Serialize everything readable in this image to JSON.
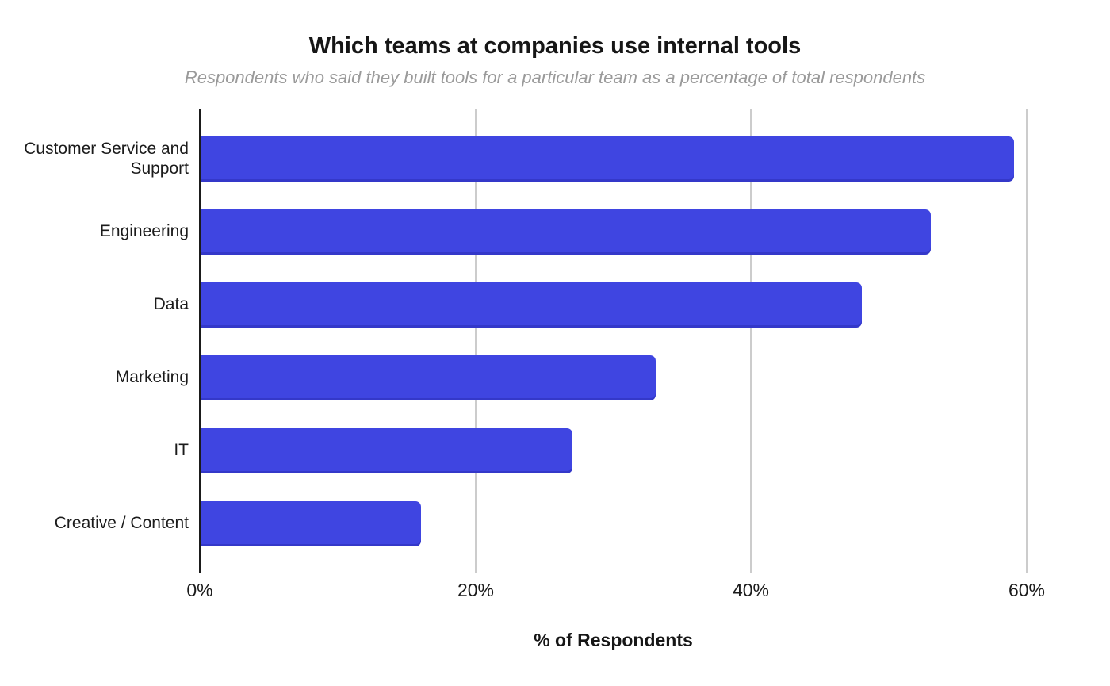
{
  "chart_data": {
    "type": "bar",
    "orientation": "horizontal",
    "title": "Which teams at companies use internal tools",
    "subtitle": "Respondents who said they built tools for a particular team as a percentage of total respondents",
    "categories": [
      "Customer Service and Support",
      "Engineering",
      "Data",
      "Marketing",
      "IT",
      "Creative / Content"
    ],
    "values": [
      59,
      53,
      48,
      33,
      27,
      16
    ],
    "unit": "%",
    "xlabel": "% of Respondents",
    "ylabel": "",
    "xlim": [
      0,
      60
    ],
    "xticks": [
      0,
      20,
      40,
      60
    ],
    "xtick_labels": [
      "0%",
      "20%",
      "40%",
      "60%"
    ],
    "grid": "vertical-only",
    "legend": "none",
    "colors": {
      "bar": "#3f45e1",
      "gridline": "#cccccc",
      "axis_line": "#1b1b1b",
      "title_text": "#161616",
      "subtitle_text": "#9a9a9a",
      "label_text": "#1b1b1b",
      "background": "#ffffff"
    }
  }
}
